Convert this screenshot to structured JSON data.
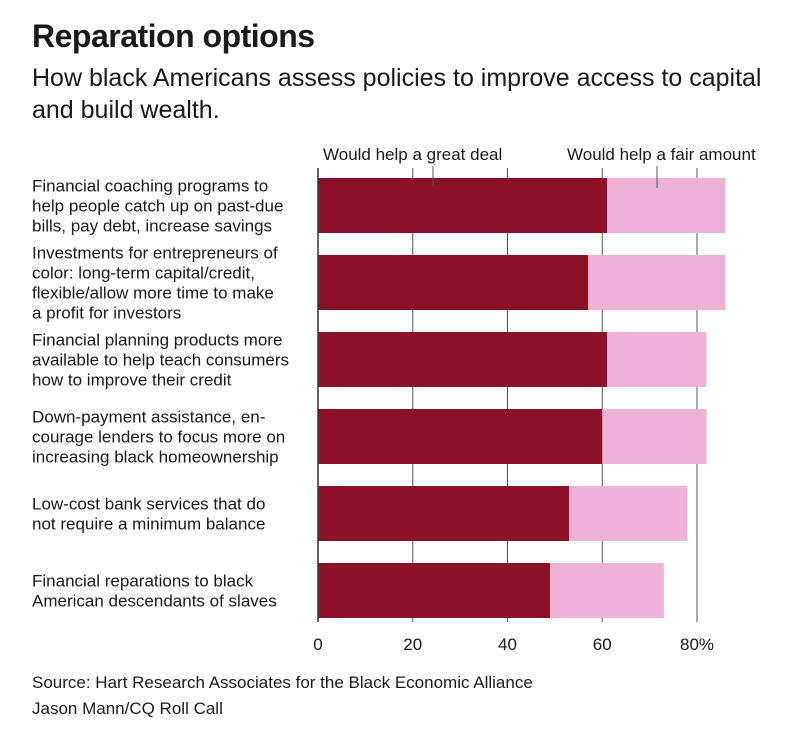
{
  "header": {
    "title": "Reparation options",
    "subtitle": "How black Americans assess policies to improve access to capital and build wealth."
  },
  "footer": {
    "source": "Source: Hart Research Associates for the Black Economic Alliance",
    "credit": "Jason Mann/CQ Roll Call"
  },
  "colors": {
    "great_deal": "#8b1129",
    "fair_amount": "#eeb2d6",
    "axis": "#333333",
    "grid": "#555555"
  },
  "chart_data": {
    "type": "bar",
    "orientation": "horizontal",
    "stacked": true,
    "categories": [
      [
        "Financial coaching programs to",
        "help people catch up on past-due",
        "bills, pay debt, increase savings"
      ],
      [
        "Investments for entrepreneurs of",
        "color: long-term capital/credit,",
        "flexible/allow more time to make",
        "a profit for investors"
      ],
      [
        "Financial planning products more",
        "available to help teach consumers",
        "how to improve their credit"
      ],
      [
        "Down-payment assistance, en-",
        "courage lenders to focus more on",
        "increasing black homeownership"
      ],
      [
        "Low-cost bank services that do",
        "not require a minimum balance"
      ],
      [
        "Financial reparations to black",
        "American descendants of slaves"
      ]
    ],
    "series": [
      {
        "name": "Would help a great deal",
        "values": [
          61,
          57,
          61,
          60,
          53,
          49
        ]
      },
      {
        "name": "Would help a fair amount",
        "values": [
          25,
          29,
          21,
          22,
          25,
          24
        ]
      }
    ],
    "xlim": [
      0,
      80
    ],
    "xticks": [
      0,
      20,
      40,
      60,
      80
    ],
    "xtick_labels": [
      "0",
      "20",
      "40",
      "60",
      "80%"
    ],
    "grid": true,
    "legend_placement": "top"
  }
}
